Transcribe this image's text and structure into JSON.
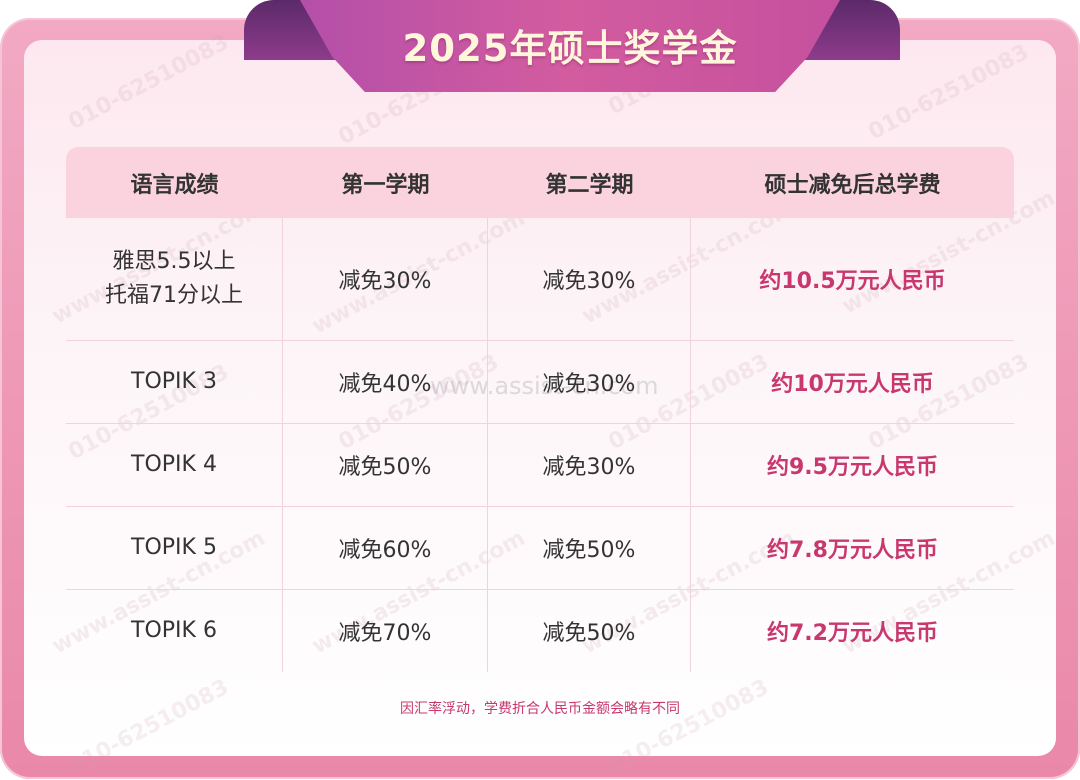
{
  "title": "2025年硕士奖学金",
  "table": {
    "headers": [
      "语言成绩",
      "第一学期",
      "第二学期",
      "硕士减免后总学费"
    ],
    "rows": [
      {
        "lang_line1": "雅思5.5以上",
        "lang_line2": "托福71分以上",
        "sem1": "减免30%",
        "sem2": "减免30%",
        "total": "约10.5万元人民币"
      },
      {
        "lang_line1": "TOPIK 3",
        "lang_line2": "",
        "sem1": "减免40%",
        "sem2": "减免30%",
        "total": "约10万元人民币"
      },
      {
        "lang_line1": "TOPIK 4",
        "lang_line2": "",
        "sem1": "减免50%",
        "sem2": "减免30%",
        "total": "约9.5万元人民币"
      },
      {
        "lang_line1": "TOPIK 5",
        "lang_line2": "",
        "sem1": "减免60%",
        "sem2": "减免50%",
        "total": "约7.8万元人民币"
      },
      {
        "lang_line1": "TOPIK 6",
        "lang_line2": "",
        "sem1": "减免70%",
        "sem2": "减免50%",
        "total": "约7.2万元人民币"
      }
    ]
  },
  "footnote": "因汇率浮动，学费折合人民币金额会略有不同",
  "watermarks": {
    "phone": "010-62510083",
    "site": "www.assist-cn.com"
  },
  "colors": {
    "frame": "#ea88a9",
    "header_bg": "#fbd3de",
    "title_banner": "#c5509e",
    "accent_text": "#c8386e"
  }
}
